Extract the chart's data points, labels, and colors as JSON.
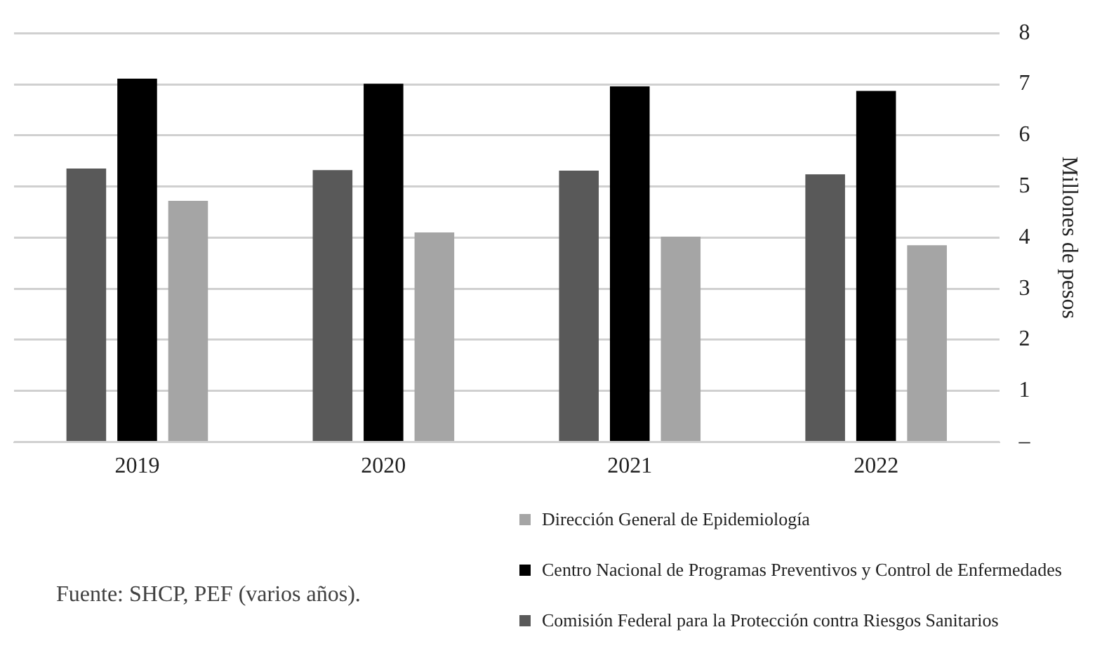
{
  "chart_data": {
    "type": "bar",
    "ylabel": "Millones de pesos",
    "categories": [
      "2019",
      "2020",
      "2021",
      "2022"
    ],
    "series": [
      {
        "name": "Comisión Federal para la Protección contra Riesgos Sanitarios",
        "color": "#595959",
        "values": [
          5.35,
          5.32,
          5.31,
          5.24
        ]
      },
      {
        "name": "Centro Nacional de Programas Preventivos y Control de Enfermedades",
        "color": "#000000",
        "values": [
          7.11,
          7.01,
          6.96,
          6.87
        ]
      },
      {
        "name": "Dirección General de Epidemiología",
        "color": "#a5a5a5",
        "values": [
          4.72,
          4.1,
          4.02,
          3.85
        ]
      }
    ],
    "ylim": [
      0,
      8
    ],
    "yticks": [
      {
        "value": 0,
        "label": "–"
      },
      1,
      2,
      3,
      4,
      5,
      6,
      7,
      8
    ],
    "grid": "y",
    "legend": "bottom right",
    "annotations": [
      "Fuente: SHCP, PEF (varios años)."
    ]
  }
}
